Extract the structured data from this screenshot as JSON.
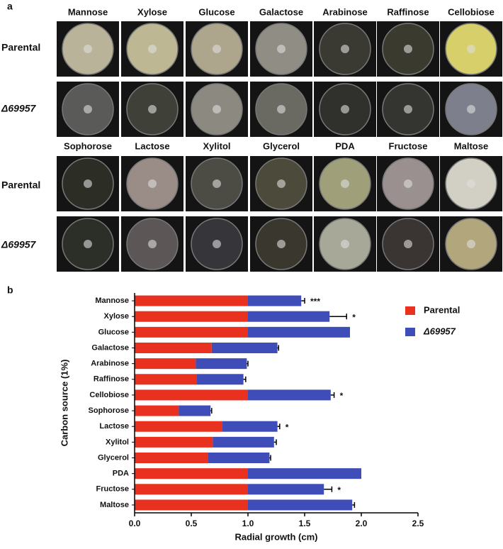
{
  "panel_a": {
    "label": "a",
    "rows": [
      "Parental",
      "Δ69957"
    ],
    "top_media": [
      "Mannose",
      "Xylose",
      "Glucose",
      "Galactose",
      "Arabinose",
      "Raffinose",
      "Cellobiose"
    ],
    "bottom_media": [
      "Sophorose",
      "Lactose",
      "Xylitol",
      "Glycerol",
      "PDA",
      "Fructose",
      "Maltose"
    ]
  },
  "chart_data": {
    "type": "bar",
    "orientation": "horizontal",
    "stacked": true,
    "label": "b",
    "categories": [
      "Mannose",
      "Xylose",
      "Glucose",
      "Galactose",
      "Arabinose",
      "Raffinose",
      "Cellobiose",
      "Sophorose",
      "Lactose",
      "Xylitol",
      "Glycerol",
      "PDA",
      "Fructose",
      "Maltose"
    ],
    "series": [
      {
        "name": "Parental",
        "color": "#e8311f",
        "values": [
          1.0,
          1.0,
          1.0,
          0.68,
          0.54,
          0.55,
          1.0,
          0.39,
          0.77,
          0.69,
          0.65,
          1.0,
          1.0,
          1.0
        ],
        "errors": [
          null,
          0.01,
          null,
          null,
          0.04,
          0.03,
          null,
          0.03,
          null,
          null,
          null,
          null,
          null,
          null
        ]
      },
      {
        "name": "Δ69957",
        "color": "#3e4db8",
        "values": [
          0.47,
          0.72,
          0.9,
          0.58,
          0.45,
          0.41,
          0.73,
          0.28,
          0.49,
          0.54,
          0.54,
          1.0,
          0.67,
          0.92
        ],
        "errors": [
          0.03,
          0.15,
          null,
          0.01,
          0.01,
          0.02,
          0.03,
          0.01,
          0.02,
          0.02,
          0.01,
          null,
          0.07,
          0.02
        ]
      }
    ],
    "annotations": [
      "***",
      "*",
      null,
      null,
      null,
      null,
      "*",
      null,
      "*",
      null,
      null,
      null,
      "*",
      null
    ],
    "xlim": [
      0,
      2.5
    ],
    "xticks": [
      {
        "value": 0,
        "label": "0.0"
      },
      0.5,
      {
        "value": 1,
        "label": "1.0"
      },
      1.5,
      {
        "value": 2,
        "label": "2.0"
      },
      2.5
    ],
    "xlabel": "Radial growth (cm)",
    "ylabel": "Carbon source (1%)",
    "legend": "right"
  }
}
